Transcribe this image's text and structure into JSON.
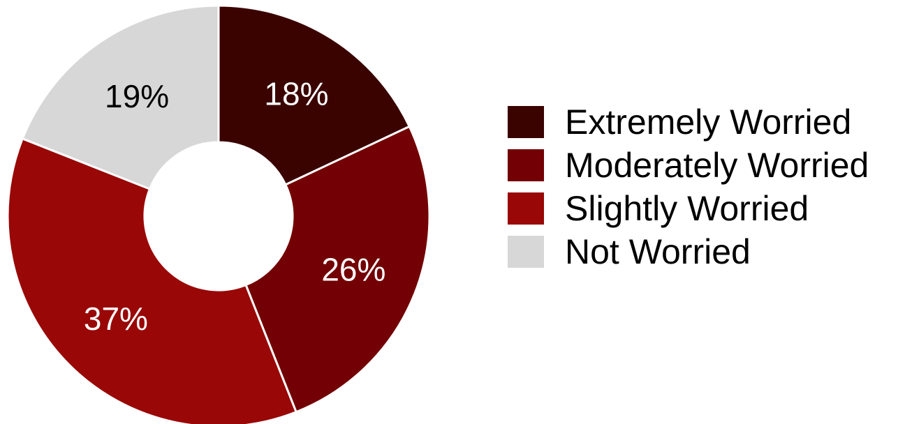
{
  "chart_data": {
    "type": "pie",
    "donut": true,
    "title": "",
    "legend_position": "right",
    "slices": [
      {
        "label": "Extremely Worried",
        "value": 18,
        "value_label": "18%",
        "color": "#3a0300",
        "label_color": "#ffffff"
      },
      {
        "label": "Moderately Worried",
        "value": 26,
        "value_label": "26%",
        "color": "#730004",
        "label_color": "#ffffff"
      },
      {
        "label": "Slightly Worried",
        "value": 37,
        "value_label": "37%",
        "color": "#990707",
        "label_color": "#ffffff"
      },
      {
        "label": "Not Worried",
        "value": 19,
        "value_label": "19%",
        "color": "#d7d7d7",
        "label_color": "#000000"
      }
    ]
  }
}
